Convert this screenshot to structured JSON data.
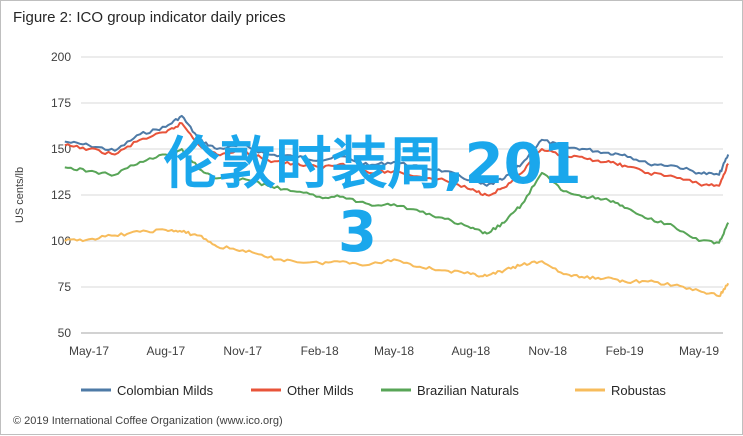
{
  "title": "Figure 2: ICO group indicator daily prices",
  "footer": "© 2019 International Coffee Organization (www.ico.org)",
  "overlay": {
    "line1": "伦敦时装周,201",
    "line2": "3",
    "color": "#1aa7ec"
  },
  "chart_data": {
    "type": "line",
    "ylabel": "US cents/lb",
    "ylim": [
      50,
      200
    ],
    "yticks": [
      50,
      75,
      100,
      125,
      150,
      175,
      200
    ],
    "grid": true,
    "legend_position": "bottom",
    "x_tick_labels": [
      "May-17",
      "Aug-17",
      "Nov-17",
      "Feb-18",
      "May-18",
      "Aug-18",
      "Nov-18",
      "Feb-19",
      "May-19"
    ],
    "x_tick_dates": [
      "2017-05-01",
      "2017-08-01",
      "2017-11-01",
      "2018-02-01",
      "2018-05-01",
      "2018-08-01",
      "2018-11-01",
      "2019-02-01",
      "2019-05-01"
    ],
    "x_dates": [
      "2017-04-02",
      "2017-05-01",
      "2017-06-01",
      "2017-07-01",
      "2017-08-01",
      "2017-08-20",
      "2017-09-10",
      "2017-10-01",
      "2017-11-01",
      "2017-12-01",
      "2018-01-01",
      "2018-02-01",
      "2018-03-01",
      "2018-04-01",
      "2018-05-01",
      "2018-06-01",
      "2018-07-01",
      "2018-08-01",
      "2018-08-20",
      "2018-09-10",
      "2018-10-01",
      "2018-10-25",
      "2018-11-20",
      "2018-12-15",
      "2019-01-10",
      "2019-02-01",
      "2019-03-01",
      "2019-04-01",
      "2019-05-01",
      "2019-05-25",
      "2019-06-05"
    ],
    "series": [
      {
        "name": "Colombian Milds",
        "color": "#4e7aa6",
        "values": [
          154,
          152,
          149,
          158,
          162,
          168,
          155,
          150,
          152,
          147,
          146,
          144,
          146,
          141,
          143,
          140,
          138,
          133,
          130,
          134,
          142,
          155,
          151,
          150,
          148,
          147,
          142,
          141,
          137,
          136,
          147
        ]
      },
      {
        "name": "Other Milds",
        "color": "#e8543a",
        "values": [
          152,
          150,
          147,
          155,
          159,
          164,
          152,
          147,
          149,
          144,
          142,
          140,
          142,
          137,
          138,
          135,
          133,
          128,
          125,
          129,
          137,
          150,
          146,
          145,
          143,
          141,
          137,
          135,
          131,
          130,
          142
        ]
      },
      {
        "name": "Brazilian Naturals",
        "color": "#58a557",
        "values": [
          140,
          138,
          136,
          143,
          147,
          150,
          139,
          134,
          134,
          130,
          127,
          124,
          124,
          120,
          120,
          116,
          112,
          107,
          104,
          110,
          120,
          137,
          127,
          124,
          123,
          118,
          112,
          108,
          100,
          99,
          110
        ]
      },
      {
        "name": "Robustas",
        "color": "#f7bc5c",
        "values": [
          100,
          101,
          103,
          105,
          106,
          105,
          103,
          97,
          95,
          91,
          89,
          88,
          89,
          87,
          90,
          86,
          84,
          82,
          81,
          84,
          87,
          89,
          82,
          80,
          80,
          78,
          78,
          76,
          73,
          70,
          77
        ]
      }
    ]
  }
}
